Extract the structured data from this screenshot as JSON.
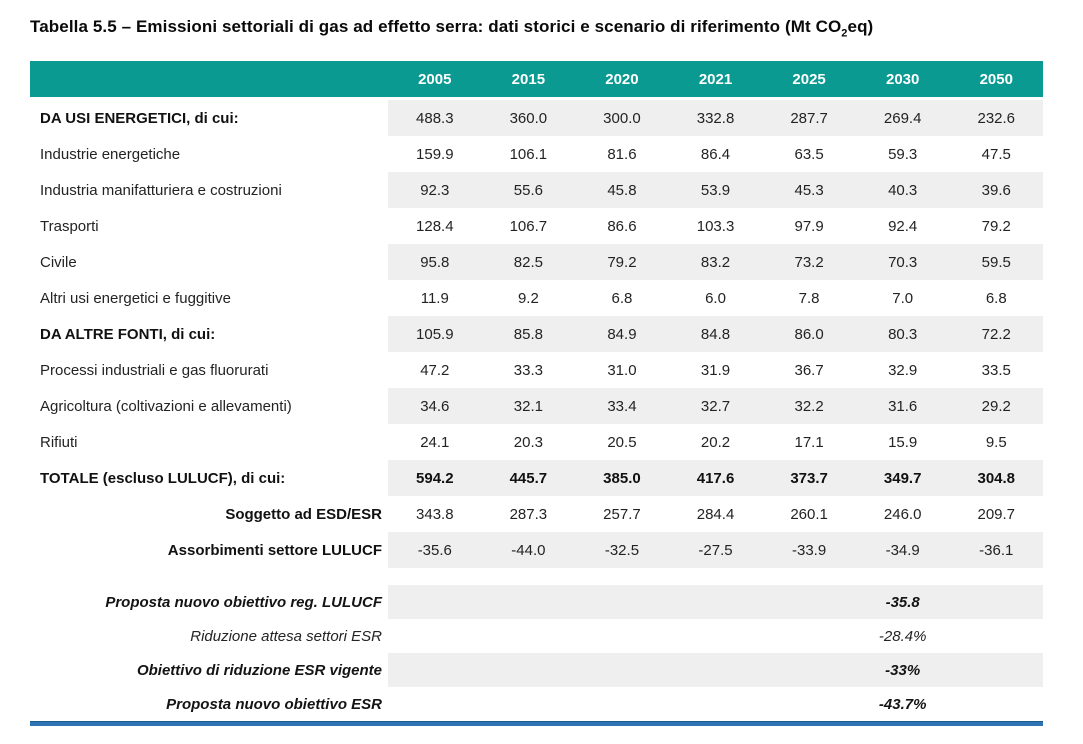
{
  "title": {
    "before_sub": "Tabella 5.5 – Emissioni settoriali di gas ad effetto serra: dati storici e scenario di riferimento (Mt CO",
    "sub": "2",
    "after_sub": "eq)"
  },
  "table": {
    "columns": [
      "2005",
      "2015",
      "2020",
      "2021",
      "2025",
      "2030",
      "2050"
    ],
    "rows": [
      {
        "label": "DA USI ENERGETICI, di cui:",
        "label_bold": true,
        "values_bold": false,
        "label_align": "left",
        "striped": true,
        "values": [
          "488.3",
          "360.0",
          "300.0",
          "332.8",
          "287.7",
          "269.4",
          "232.6"
        ]
      },
      {
        "label": "Industrie energetiche",
        "label_bold": false,
        "values_bold": false,
        "label_align": "left",
        "striped": false,
        "values": [
          "159.9",
          "106.1",
          "81.6",
          "86.4",
          "63.5",
          "59.3",
          "47.5"
        ]
      },
      {
        "label": "Industria manifatturiera e costruzioni",
        "label_bold": false,
        "values_bold": false,
        "label_align": "left",
        "striped": true,
        "values": [
          "92.3",
          "55.6",
          "45.8",
          "53.9",
          "45.3",
          "40.3",
          "39.6"
        ]
      },
      {
        "label": "Trasporti",
        "label_bold": false,
        "values_bold": false,
        "label_align": "left",
        "striped": false,
        "values": [
          "128.4",
          "106.7",
          "86.6",
          "103.3",
          "97.9",
          "92.4",
          "79.2"
        ]
      },
      {
        "label": "Civile",
        "label_bold": false,
        "values_bold": false,
        "label_align": "left",
        "striped": true,
        "values": [
          "95.8",
          "82.5",
          "79.2",
          "83.2",
          "73.2",
          "70.3",
          "59.5"
        ]
      },
      {
        "label": "Altri usi energetici e fuggitive",
        "label_bold": false,
        "values_bold": false,
        "label_align": "left",
        "striped": false,
        "values": [
          "11.9",
          "9.2",
          "6.8",
          "6.0",
          "7.8",
          "7.0",
          "6.8"
        ]
      },
      {
        "label": "DA ALTRE FONTI, di cui:",
        "label_bold": true,
        "values_bold": false,
        "label_align": "left",
        "striped": true,
        "values": [
          "105.9",
          "85.8",
          "84.9",
          "84.8",
          "86.0",
          "80.3",
          "72.2"
        ]
      },
      {
        "label": "Processi industriali e gas fluorurati",
        "label_bold": false,
        "values_bold": false,
        "label_align": "left",
        "striped": false,
        "values": [
          "47.2",
          "33.3",
          "31.0",
          "31.9",
          "36.7",
          "32.9",
          "33.5"
        ]
      },
      {
        "label": "Agricoltura (coltivazioni e allevamenti)",
        "label_bold": false,
        "values_bold": false,
        "label_align": "left",
        "striped": true,
        "values": [
          "34.6",
          "32.1",
          "33.4",
          "32.7",
          "32.2",
          "31.6",
          "29.2"
        ]
      },
      {
        "label": "Rifiuti",
        "label_bold": false,
        "values_bold": false,
        "label_align": "left",
        "striped": false,
        "values": [
          "24.1",
          "20.3",
          "20.5",
          "20.2",
          "17.1",
          "15.9",
          "9.5"
        ]
      },
      {
        "label": "TOTALE (escluso LULUCF), di cui:",
        "label_bold": true,
        "values_bold": true,
        "label_align": "left",
        "striped": true,
        "values": [
          "594.2",
          "445.7",
          "385.0",
          "417.6",
          "373.7",
          "349.7",
          "304.8"
        ]
      },
      {
        "label": "Soggetto ad ESD/ESR",
        "label_bold": true,
        "values_bold": false,
        "label_align": "right",
        "striped": false,
        "values": [
          "343.8",
          "287.3",
          "257.7",
          "284.4",
          "260.1",
          "246.0",
          "209.7"
        ]
      },
      {
        "label": "Assorbimenti settore LULUCF",
        "label_bold": true,
        "values_bold": false,
        "label_align": "right",
        "striped": true,
        "values": [
          "-35.6",
          "-44.0",
          "-32.5",
          "-27.5",
          "-33.9",
          "-34.9",
          "-36.1"
        ]
      }
    ],
    "footer_rows": [
      {
        "label": "Proposta nuovo obiettivo reg. LULUCF",
        "bold": true,
        "striped": true,
        "column": "2030",
        "value": "-35.8"
      },
      {
        "label": "Riduzione attesa settori ESR",
        "bold": false,
        "striped": false,
        "column": "2030",
        "value": "-28.4%"
      },
      {
        "label": "Obiettivo di riduzione ESR vigente",
        "bold": true,
        "striped": true,
        "column": "2030",
        "value": "-33%"
      },
      {
        "label": "Proposta nuovo obiettivo ESR",
        "bold": true,
        "striped": false,
        "column": "2030",
        "value": "-43.7%"
      }
    ]
  },
  "colors": {
    "header_teal": "#0A9A92",
    "stripe_gray": "#EFEFEF",
    "bottom_line_blue": "#2E74B5"
  }
}
